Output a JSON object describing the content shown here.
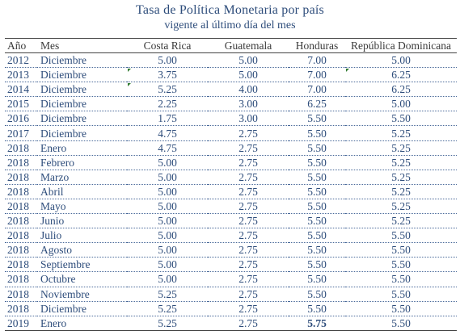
{
  "title": "Tasa de Política Monetaria por país",
  "subtitle": "vigente al último día del mes",
  "columns": [
    "Año",
    "Mes",
    "Costa Rica",
    "Guatemala",
    "Honduras",
    "República Dominicana"
  ],
  "rows": [
    {
      "year": "2012",
      "month": "Diciembre",
      "cr": "5.00",
      "gt": "5.00",
      "hn": "7.00",
      "rd": "5.00"
    },
    {
      "year": "2013",
      "month": "Diciembre",
      "cr": "3.75",
      "gt": "5.00",
      "hn": "7.00",
      "rd": "6.25"
    },
    {
      "year": "2014",
      "month": "Diciembre",
      "cr": "5.25",
      "gt": "4.00",
      "hn": "7.00",
      "rd": "6.25"
    },
    {
      "year": "2015",
      "month": "Diciembre",
      "cr": "2.25",
      "gt": "3.00",
      "hn": "6.25",
      "rd": "5.00"
    },
    {
      "year": "2016",
      "month": "Diciembre",
      "cr": "1.75",
      "gt": "3.00",
      "hn": "5.50",
      "rd": "5.50"
    },
    {
      "year": "2017",
      "month": "Diciembre",
      "cr": "4.75",
      "gt": "2.75",
      "hn": "5.50",
      "rd": "5.25"
    },
    {
      "year": "2018",
      "month": "Enero",
      "cr": "4.75",
      "gt": "2.75",
      "hn": "5.50",
      "rd": "5.25"
    },
    {
      "year": "2018",
      "month": "Febrero",
      "cr": "5.00",
      "gt": "2.75",
      "hn": "5.50",
      "rd": "5.25"
    },
    {
      "year": "2018",
      "month": "Marzo",
      "cr": "5.00",
      "gt": "2.75",
      "hn": "5.50",
      "rd": "5.25"
    },
    {
      "year": "2018",
      "month": "Abril",
      "cr": "5.00",
      "gt": "2.75",
      "hn": "5.50",
      "rd": "5.25"
    },
    {
      "year": "2018",
      "month": "Mayo",
      "cr": "5.00",
      "gt": "2.75",
      "hn": "5.50",
      "rd": "5.25"
    },
    {
      "year": "2018",
      "month": "Junio",
      "cr": "5.00",
      "gt": "2.75",
      "hn": "5.50",
      "rd": "5.25"
    },
    {
      "year": "2018",
      "month": "Julio",
      "cr": "5.00",
      "gt": "2.75",
      "hn": "5.50",
      "rd": "5.50"
    },
    {
      "year": "2018",
      "month": "Agosto",
      "cr": "5.00",
      "gt": "2.75",
      "hn": "5.50",
      "rd": "5.50"
    },
    {
      "year": "2018",
      "month": "Septiembre",
      "cr": "5.00",
      "gt": "2.75",
      "hn": "5.50",
      "rd": "5.50"
    },
    {
      "year": "2018",
      "month": "Octubre",
      "cr": "5.00",
      "gt": "2.75",
      "hn": "5.50",
      "rd": "5.50"
    },
    {
      "year": "2018",
      "month": "Noviembre",
      "cr": "5.25",
      "gt": "2.75",
      "hn": "5.50",
      "rd": "5.50"
    },
    {
      "year": "2018",
      "month": "Diciembre",
      "cr": "5.25",
      "gt": "2.75",
      "hn": "5.50",
      "rd": "5.50"
    },
    {
      "year": "2019",
      "month": "Enero",
      "cr": "5.25",
      "gt": "2.75",
      "hn": "5.75",
      "rd": "5.50",
      "hn_bold": true
    }
  ],
  "comment_markers": [
    {
      "row": 1,
      "column": "cr"
    },
    {
      "row": 2,
      "column": "cr"
    },
    {
      "row": 1,
      "column": "rd"
    }
  ],
  "colors": {
    "title": "#2e4d7b",
    "cell_text": "#2e4d7b",
    "header_text": "#3a3a3a",
    "comment_marker": "#2f7a2f"
  }
}
